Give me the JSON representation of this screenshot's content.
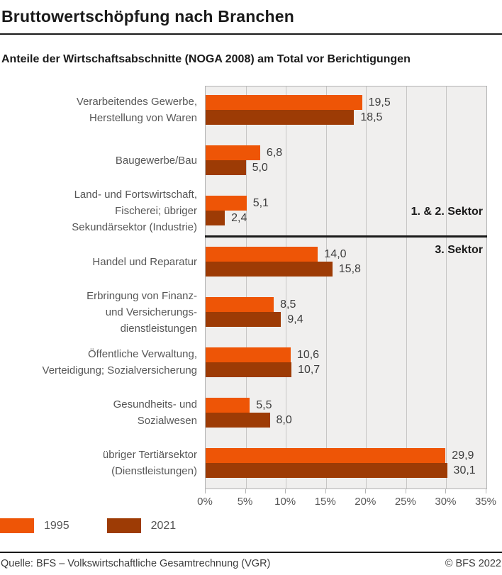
{
  "header": {
    "title": "Bruttowertschöpfung nach Branchen"
  },
  "subtitle": "Anteile der Wirtschaftsabschnitte (NOGA 2008) am Total vor Berichtigungen",
  "chart_data": {
    "type": "bar",
    "orientation": "horizontal",
    "title": "Bruttowertschöpfung nach Branchen",
    "subtitle": "Anteile der Wirtschaftsabschnitte (NOGA 2008) am Total vor Berichtigungen",
    "xlim": [
      0,
      35
    ],
    "x_tick_labels": [
      "0%",
      "5%",
      "10%",
      "15%",
      "20%",
      "25%",
      "30%",
      "35%"
    ],
    "grid": "vertical",
    "legend_position": "bottom-left",
    "categories": [
      {
        "label_lines": [
          "Verarbeitendes Gewerbe,",
          "Herstellung von Waren"
        ]
      },
      {
        "label_lines": [
          "Baugewerbe/Bau"
        ]
      },
      {
        "label_lines": [
          "Land- und Fortswirtschaft,",
          "Fischerei; übriger",
          "Sekundärsektor (Industrie)"
        ]
      },
      {
        "label_lines": [
          "Handel und Reparatur"
        ]
      },
      {
        "label_lines": [
          "Erbringung von Finanz-",
          "und Versicherungs-",
          "dienstleistungen"
        ]
      },
      {
        "label_lines": [
          "Öffentliche Verwaltung,",
          "Verteidigung; Sozialversicherung"
        ]
      },
      {
        "label_lines": [
          "Gesundheits- und",
          "Sozialwesen"
        ]
      },
      {
        "label_lines": [
          "übriger Tertiärsektor",
          "(Dienstleistungen)"
        ]
      }
    ],
    "series": [
      {
        "name": "1995",
        "color": "#ee5506",
        "values": [
          19.5,
          6.8,
          5.1,
          14.0,
          8.5,
          10.6,
          5.5,
          29.9
        ],
        "value_labels": [
          "19,5",
          "6,8",
          "5,1",
          "14,0",
          "8,5",
          "10,6",
          "5,5",
          "29,9"
        ]
      },
      {
        "name": "2021",
        "color": "#9d3b05",
        "values": [
          18.5,
          5.0,
          2.4,
          15.8,
          9.4,
          10.7,
          8.0,
          30.1
        ],
        "value_labels": [
          "18,5",
          "5,0",
          "2,4",
          "15,8",
          "9,4",
          "10,7",
          "8,0",
          "30,1"
        ]
      }
    ],
    "annotations": [
      {
        "label": "1. & 2. Sektor",
        "position": "above-divider"
      },
      {
        "label": "3. Sektor",
        "position": "below-divider"
      }
    ],
    "divider_after_category_index": 2
  },
  "footer": {
    "source": "Quelle: BFS – Volkswirtschaftliche Gesamtrechnung (VGR)",
    "copyright": "© BFS 2022"
  }
}
